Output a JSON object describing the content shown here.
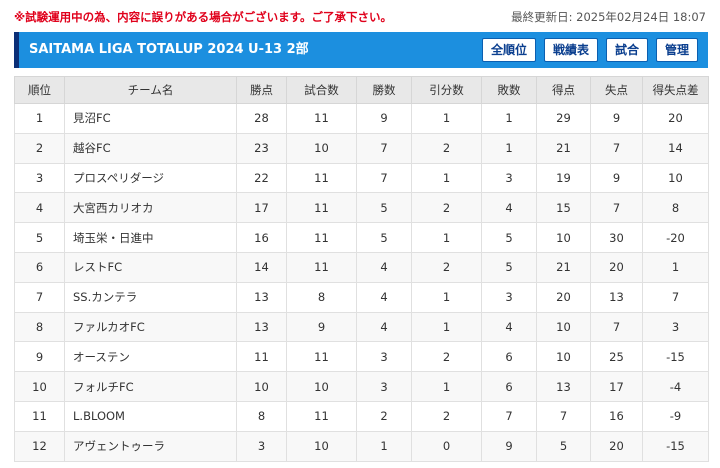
{
  "header": {
    "notice": "※試験運用中の為、内容に誤りがある場合がございます。ご了承下さい。",
    "updated": "最終更新日: 2025年02月24日 18:07"
  },
  "titlebar": {
    "title": "SAITAMA LIGA TOTALUP 2024 U-13 2部",
    "buttons": [
      "全順位",
      "戦績表",
      "試合",
      "管理"
    ]
  },
  "table": {
    "columns": [
      "順位",
      "チーム名",
      "勝点",
      "試合数",
      "勝数",
      "引分数",
      "敗数",
      "得点",
      "失点",
      "得失点差"
    ],
    "rows": [
      [
        "1",
        "見沼FC",
        "28",
        "11",
        "9",
        "1",
        "1",
        "29",
        "9",
        "20"
      ],
      [
        "2",
        "越谷FC",
        "23",
        "10",
        "7",
        "2",
        "1",
        "21",
        "7",
        "14"
      ],
      [
        "3",
        "プロスペリダージ",
        "22",
        "11",
        "7",
        "1",
        "3",
        "19",
        "9",
        "10"
      ],
      [
        "4",
        "大宮西カリオカ",
        "17",
        "11",
        "5",
        "2",
        "4",
        "15",
        "7",
        "8"
      ],
      [
        "5",
        "埼玉栄・日進中",
        "16",
        "11",
        "5",
        "1",
        "5",
        "10",
        "30",
        "-20"
      ],
      [
        "6",
        "レストFC",
        "14",
        "11",
        "4",
        "2",
        "5",
        "21",
        "20",
        "1"
      ],
      [
        "7",
        "SS.カンテラ",
        "13",
        "8",
        "4",
        "1",
        "3",
        "20",
        "13",
        "7"
      ],
      [
        "8",
        "ファルカオFC",
        "13",
        "9",
        "4",
        "1",
        "4",
        "10",
        "7",
        "3"
      ],
      [
        "9",
        "オーステン",
        "11",
        "11",
        "3",
        "2",
        "6",
        "10",
        "25",
        "-15"
      ],
      [
        "10",
        "フォルチFC",
        "10",
        "10",
        "3",
        "1",
        "6",
        "13",
        "17",
        "-4"
      ],
      [
        "11",
        "L.BLOOM",
        "8",
        "11",
        "2",
        "2",
        "7",
        "7",
        "16",
        "-9"
      ],
      [
        "12",
        "アヴェントゥーラ",
        "3",
        "10",
        "1",
        "0",
        "9",
        "5",
        "20",
        "-15"
      ]
    ]
  }
}
